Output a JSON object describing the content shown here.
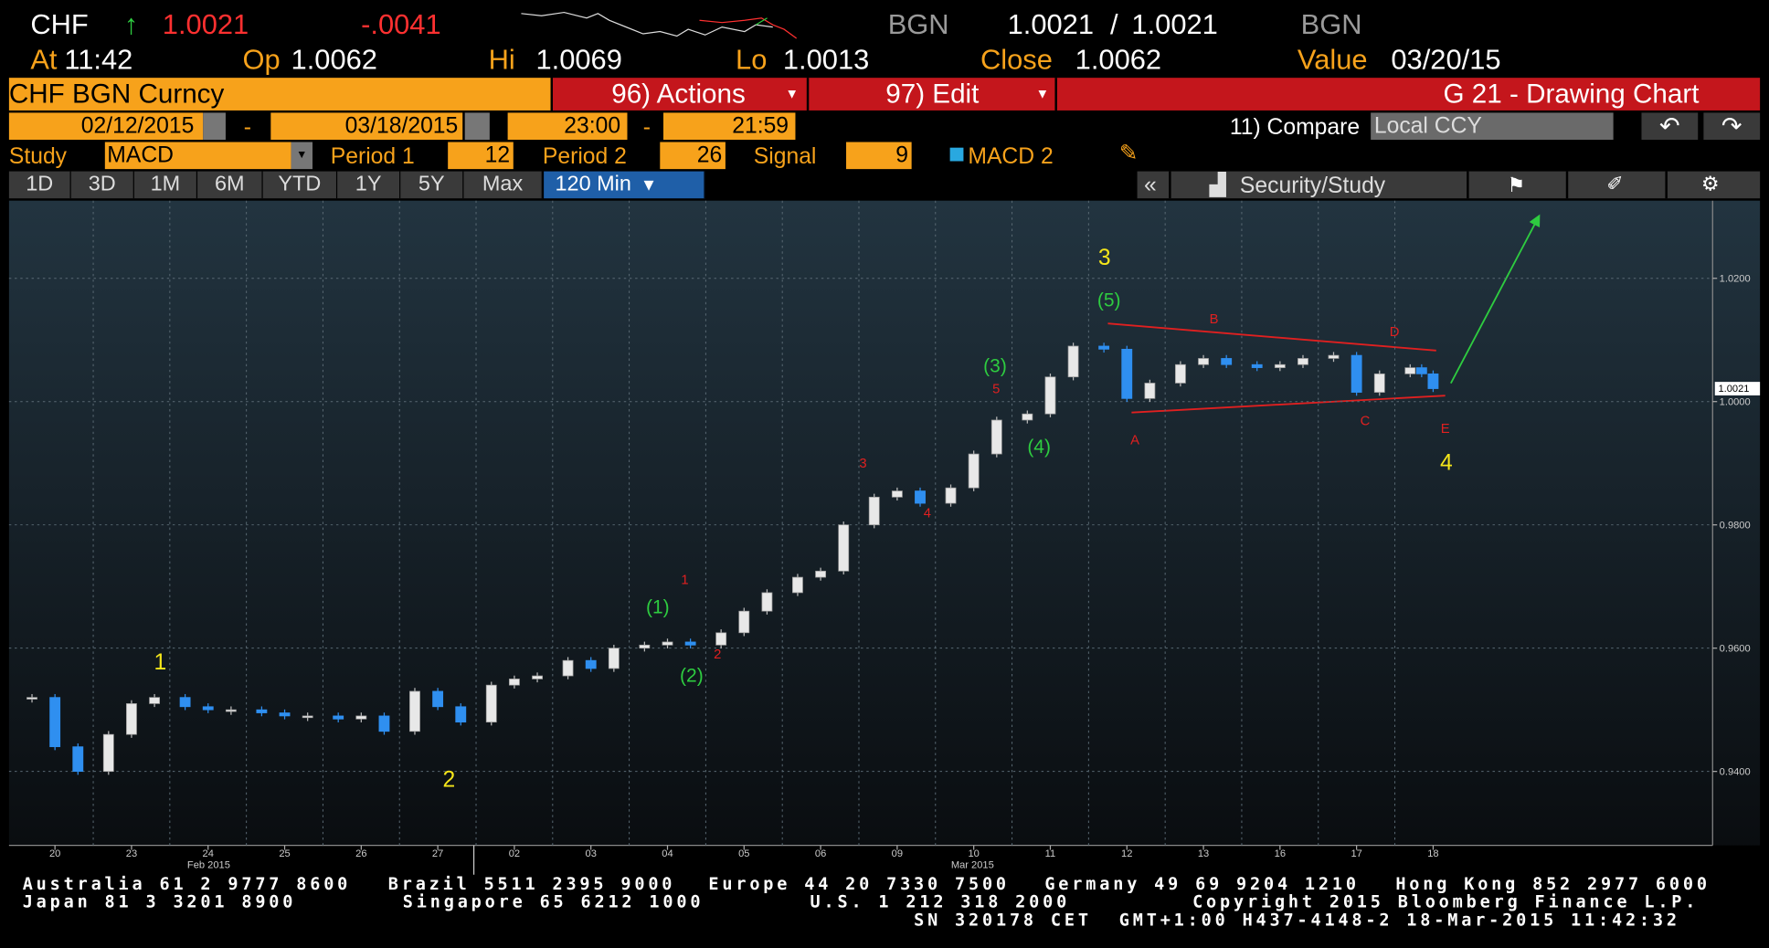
{
  "header": {
    "symbol": "CHF",
    "arrow": "↑",
    "last": "1.0021",
    "change": "-.0041",
    "source": "BGN",
    "bid": "1.0021",
    "separator": "/",
    "ask": "1.0021",
    "source2": "BGN"
  },
  "quote": {
    "at_label": "At",
    "at": "11:42",
    "op_label": "Op",
    "op": "1.0062",
    "hi_label": "Hi",
    "hi": "1.0069",
    "lo_label": "Lo",
    "lo": "1.0013",
    "close_label": "Close",
    "close": "1.0062",
    "value_label": "Value",
    "value": "03/20/15"
  },
  "toolbar": {
    "security": "CHF BGN Curncy",
    "actions": "96) Actions",
    "edit": "97) Edit",
    "title": "G 21 - Drawing Chart"
  },
  "range": {
    "start_date": "02/12/2015",
    "dash1": "-",
    "end_date": "03/18/2015",
    "start_time": "23:00",
    "dash2": "-",
    "end_time": "21:59",
    "compare": "11) Compare",
    "currency": "Local CCY"
  },
  "study": {
    "label": "Study",
    "name": "MACD",
    "period1_label": "Period 1",
    "period1": "12",
    "period2_label": "Period 2",
    "period2": "26",
    "signal_label": "Signal",
    "signal": "9",
    "overlay": "MACD 2"
  },
  "tabs": [
    "1D",
    "3D",
    "1M",
    "6M",
    "YTD",
    "1Y",
    "5Y",
    "Max",
    "120 Min"
  ],
  "panel": {
    "collapse": "«",
    "security_study": "Security/Study"
  },
  "chart_data": {
    "type": "candlestick",
    "x": [
      -0.3,
      0,
      0.3,
      0.7,
      1,
      1.3,
      1.7,
      2,
      2.3,
      2.7,
      3,
      3.3,
      3.7,
      4,
      4.3,
      4.7,
      5,
      5.3,
      5.7,
      6,
      6.3,
      6.7,
      7,
      7.3,
      7.7,
      8,
      8.3,
      8.7,
      9,
      9.3,
      9.7,
      10,
      10.3,
      10.7,
      11,
      11.3,
      11.7,
      12,
      12.3,
      12.7,
      13,
      13.3,
      13.7,
      14,
      14.3,
      14.7,
      15,
      15.3,
      15.7,
      16,
      16.3,
      16.7,
      17,
      17.3,
      17.7,
      17.85,
      18
    ],
    "values": [
      0.952,
      0.944,
      0.94,
      0.946,
      0.951,
      0.952,
      0.9505,
      0.95,
      0.95,
      0.9495,
      0.949,
      0.949,
      0.9485,
      0.949,
      0.9465,
      0.953,
      0.9505,
      0.948,
      0.954,
      0.955,
      0.9555,
      0.958,
      0.9567,
      0.96,
      0.9605,
      0.961,
      0.9605,
      0.9625,
      0.966,
      0.969,
      0.9715,
      0.9725,
      0.98,
      0.9845,
      0.9855,
      0.9835,
      0.986,
      0.9915,
      0.997,
      0.998,
      1.004,
      1.009,
      1.0085,
      1.0005,
      1.003,
      1.006,
      1.007,
      1.006,
      1.0055,
      1.006,
      1.007,
      1.0075,
      1.0015,
      1.0045,
      1.0055,
      1.0045,
      1.0021
    ],
    "up_color": "#e8e8e8",
    "down_color": "#2f8ff0",
    "xlim": [
      -0.6,
      21.65
    ],
    "ylim": [
      0.928,
      1.0326
    ],
    "xticks": [
      {
        "value": 0,
        "label": "20"
      },
      {
        "value": 1,
        "label": "23"
      },
      {
        "value": 2,
        "label": "24"
      },
      {
        "value": 3,
        "label": "25"
      },
      {
        "value": 4,
        "label": "26"
      },
      {
        "value": 5,
        "label": "27"
      },
      {
        "value": 6,
        "label": "02"
      },
      {
        "value": 7,
        "label": "03"
      },
      {
        "value": 8,
        "label": "04"
      },
      {
        "value": 9,
        "label": "05"
      },
      {
        "value": 10,
        "label": "06"
      },
      {
        "value": 11,
        "label": "09"
      },
      {
        "value": 12,
        "label": "10"
      },
      {
        "value": 13,
        "label": "11"
      },
      {
        "value": 14,
        "label": "12"
      },
      {
        "value": 15,
        "label": "13"
      },
      {
        "value": 16,
        "label": "16"
      },
      {
        "value": 17,
        "label": "17"
      },
      {
        "value": 18,
        "label": "18"
      }
    ],
    "month_labels": [
      "Feb 2015",
      "Mar 2015"
    ],
    "yticks": [
      {
        "value": 0.94,
        "label": "0.9400"
      },
      {
        "value": 0.96,
        "label": "0.9600"
      },
      {
        "value": 0.98,
        "label": "0.9800"
      },
      {
        "value": 1.0,
        "label": "1.0000"
      },
      {
        "value": 1.02,
        "label": "1.0200"
      }
    ],
    "last_label": "1.0021",
    "grid": true,
    "annotations": {
      "primary": [
        "1",
        "2",
        "3",
        "4"
      ],
      "intermediate": [
        "(1)",
        "(2)",
        "(3)",
        "(4)",
        "(5)"
      ],
      "minor": [
        "1",
        "2",
        "3",
        "4",
        "5",
        "A",
        "B",
        "C",
        "D",
        "E"
      ]
    }
  },
  "footer": {
    "australia": "Australia 61 2 9777 8600",
    "brazil": "Brazil 5511 2395 9000",
    "europe": "Europe 44 20 7330 7500",
    "germany": "Germany 49 69 9204 1210",
    "hongkong": "Hong Kong 852 2977 6000",
    "japan": "Japan 81 3 3201 8900",
    "singapore": "Singapore 65 6212 1000",
    "us": "U.S. 1 212 318 2000",
    "copyright": "Copyright 2015 Bloomberg Finance L.P.",
    "session": "SN 320178 CET  GMT+1:00 H437-4148-2 18-Mar-2015 11:42:32"
  }
}
